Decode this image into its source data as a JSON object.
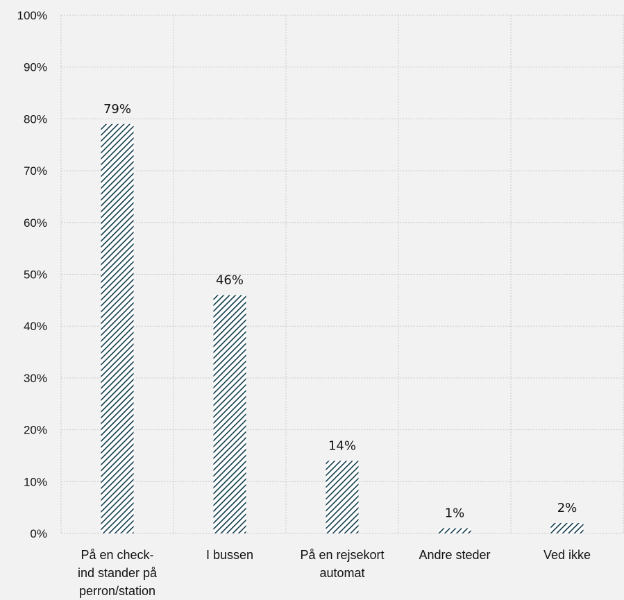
{
  "chart_data": {
    "type": "bar",
    "categories": [
      [
        "På en check-",
        "ind stander på",
        "perron/station"
      ],
      [
        "I bussen"
      ],
      [
        "På en rejsekort",
        "automat"
      ],
      [
        "Andre steder"
      ],
      [
        "Ved ikke"
      ]
    ],
    "values": [
      79,
      46,
      14,
      1,
      2
    ],
    "data_labels": [
      "79%",
      "46%",
      "14%",
      "1%",
      "2%"
    ],
    "y_ticks": [
      "0%",
      "10%",
      "20%",
      "30%",
      "40%",
      "50%",
      "60%",
      "70%",
      "80%",
      "90%",
      "100%"
    ],
    "ylim": [
      0,
      100
    ],
    "grid": true,
    "bar_color": "#0e3a4a",
    "background": "#f2f2f2",
    "legend": false
  }
}
